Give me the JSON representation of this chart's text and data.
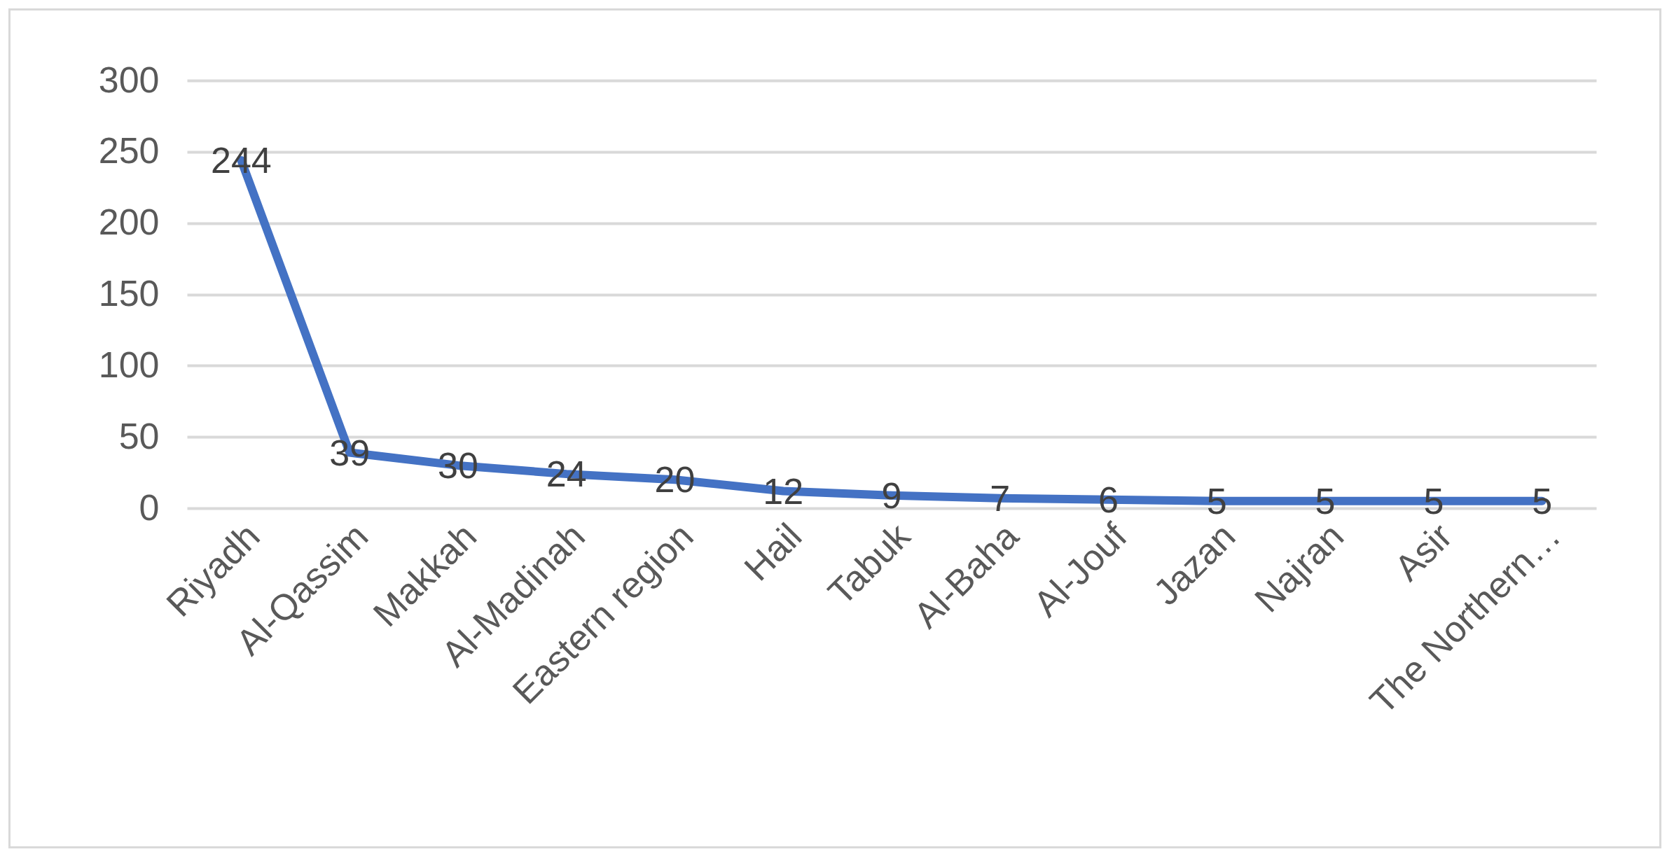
{
  "chart_data": {
    "type": "line",
    "categories": [
      "Riyadh",
      "Al-Qassim",
      "Makkah",
      "Al-Madinah",
      "Eastern region",
      "Hail",
      "Tabuk",
      "Al-Baha",
      "Al-Jouf",
      "Jazan",
      "Najran",
      "Asir",
      "The Northern…"
    ],
    "series": [
      {
        "color": "#4472c4",
        "values": [
          244,
          39,
          30,
          24,
          20,
          12,
          9,
          7,
          6,
          5,
          5,
          5,
          5
        ]
      }
    ],
    "ylim": [
      0,
      300
    ],
    "yticks": [
      0,
      50,
      100,
      150,
      200,
      250,
      300
    ],
    "grid": "y",
    "marker": "none",
    "line_style": "solid",
    "data_labels": true
  }
}
